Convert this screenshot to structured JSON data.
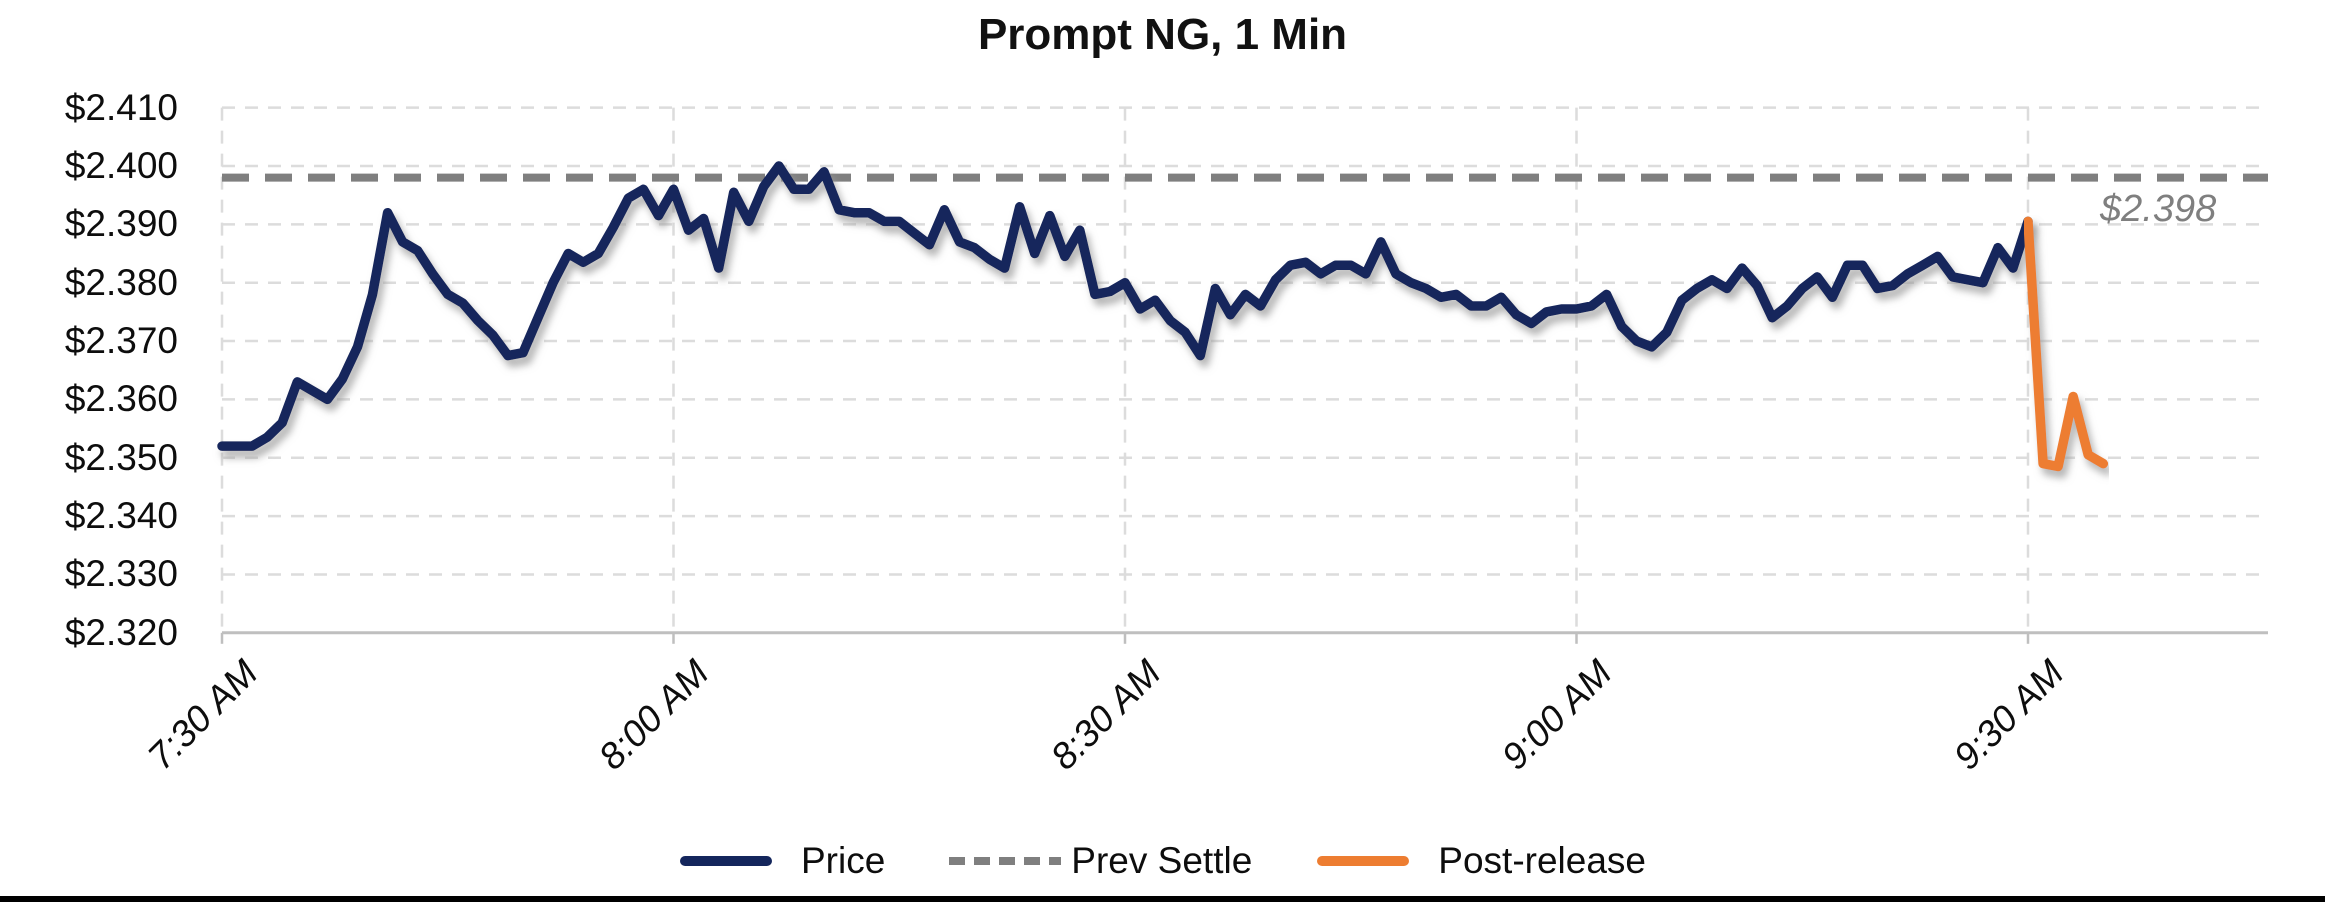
{
  "title": "Prompt NG, 1 Min",
  "annotation": {
    "text": "$2.398",
    "color": "#7f7f7f"
  },
  "y_axis": {
    "tick_labels": [
      "$2.410",
      "$2.400",
      "$2.390",
      "$2.380",
      "$2.370",
      "$2.360",
      "$2.350",
      "$2.340",
      "$2.330",
      "$2.320"
    ],
    "min": 2.32,
    "max": 2.41,
    "step": 0.01
  },
  "x_axis": {
    "tick_labels": [
      "7:30 AM",
      "8:00 AM",
      "8:30 AM",
      "9:00 AM",
      "9:30 AM"
    ],
    "tick_interval_minutes": 30
  },
  "legend": {
    "items": [
      {
        "label": "Price",
        "color": "#14265c",
        "style": "solid"
      },
      {
        "label": "Prev Settle",
        "color": "#7f7f7f",
        "style": "dashed"
      },
      {
        "label": "Post-release",
        "color": "#ed7d31",
        "style": "solid"
      }
    ]
  },
  "colors": {
    "price": "#14265c",
    "prev_settle": "#7f7f7f",
    "post_release": "#ed7d31",
    "gridline": "#dcdcdc",
    "axis": "#bfbfbf"
  },
  "chart_data": {
    "type": "line",
    "title": "Prompt NG, 1 Min",
    "xlabel": "",
    "ylabel": "",
    "ylim": [
      2.32,
      2.41
    ],
    "y_gridline_step": 0.01,
    "grid": true,
    "legend_position": "bottom",
    "x_start_label": "7:30 AM",
    "x_end_label": "9:35 AM",
    "sample_interval_minutes": 1,
    "x_tick_labels": [
      "7:30 AM",
      "8:00 AM",
      "8:30 AM",
      "9:00 AM",
      "9:30 AM"
    ],
    "prev_settle_value": 2.398,
    "annotation": {
      "text": "$2.398",
      "value": 2.398
    },
    "series": [
      {
        "name": "Price",
        "color": "#14265c",
        "style": "solid",
        "start_minute": 0,
        "values": [
          2.352,
          2.352,
          2.352,
          2.3535,
          2.356,
          2.363,
          2.3615,
          2.36,
          2.3635,
          2.369,
          2.378,
          2.392,
          2.387,
          2.3855,
          2.3815,
          2.378,
          2.3765,
          2.3735,
          2.371,
          2.3675,
          2.368,
          2.374,
          2.38,
          2.385,
          2.3835,
          2.385,
          2.3895,
          2.3945,
          2.396,
          2.3915,
          2.396,
          2.389,
          2.391,
          2.3825,
          2.3955,
          2.3905,
          2.3965,
          2.4,
          2.396,
          2.396,
          2.399,
          2.3925,
          2.392,
          2.392,
          2.3905,
          2.3905,
          2.3885,
          2.3865,
          2.3925,
          2.387,
          2.386,
          2.384,
          2.3825,
          2.393,
          2.385,
          2.3915,
          2.3845,
          2.389,
          2.378,
          2.3785,
          2.38,
          2.3755,
          2.377,
          2.3735,
          2.3715,
          2.3675,
          2.379,
          2.3745,
          2.378,
          2.376,
          2.3805,
          2.383,
          2.3835,
          2.3815,
          2.383,
          2.383,
          2.3815,
          2.387,
          2.3815,
          2.38,
          2.379,
          2.3775,
          2.378,
          2.376,
          2.376,
          2.3775,
          2.3745,
          2.373,
          2.375,
          2.3755,
          2.3755,
          2.376,
          2.378,
          2.3725,
          2.37,
          2.369,
          2.3715,
          2.377,
          2.379,
          2.3805,
          2.379,
          2.3825,
          2.3795,
          2.374,
          2.376,
          2.379,
          2.381,
          2.3775,
          2.383,
          2.383,
          2.379,
          2.3795,
          2.3815,
          2.383,
          2.3845,
          2.381,
          2.3805,
          2.38,
          2.386,
          2.3825,
          2.3905
        ]
      },
      {
        "name": "Prev Settle",
        "color": "#7f7f7f",
        "style": "dashed",
        "constant_value": 2.398
      },
      {
        "name": "Post-release",
        "color": "#ed7d31",
        "style": "solid",
        "start_minute": 120,
        "values": [
          2.3905,
          2.349,
          2.3485,
          2.3605,
          2.3505,
          2.349
        ]
      }
    ]
  }
}
